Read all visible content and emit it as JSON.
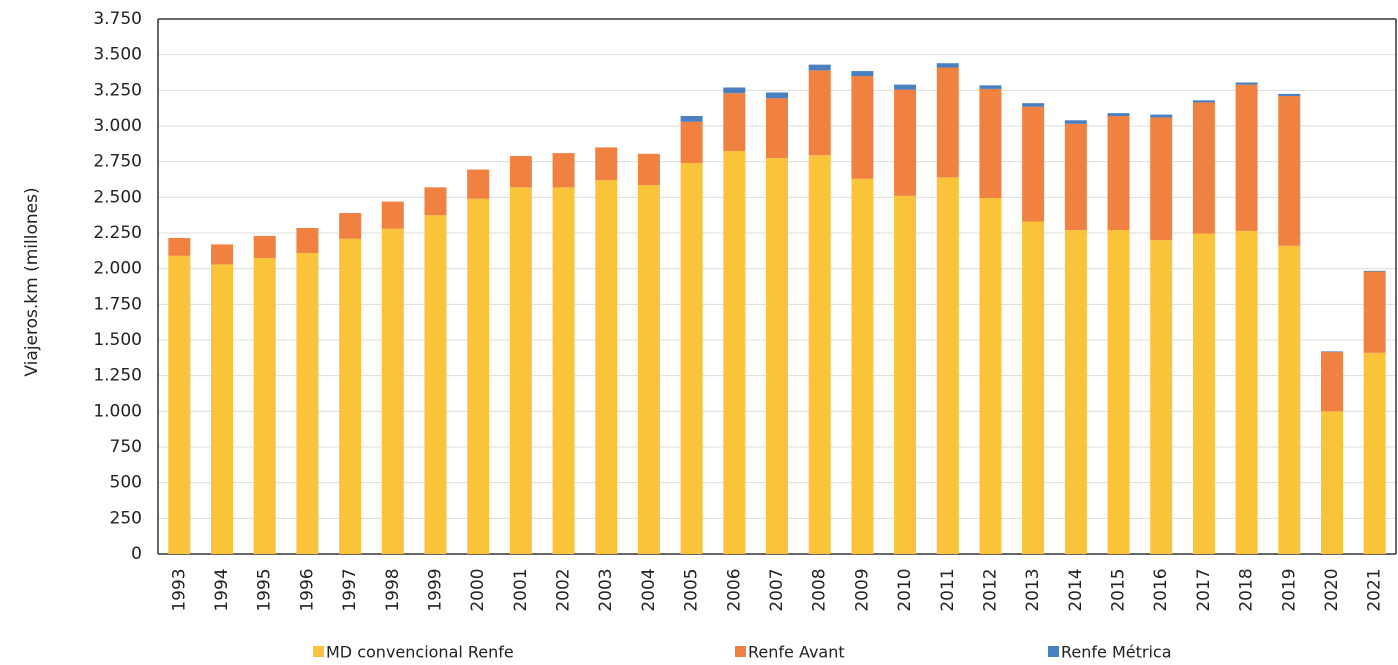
{
  "chart_data": {
    "type": "bar",
    "stacked": true,
    "y_label": "Viajeros.km (millones)",
    "categories": [
      "1993",
      "1994",
      "1995",
      "1996",
      "1997",
      "1998",
      "1999",
      "2000",
      "2001",
      "2002",
      "2003",
      "2004",
      "2005",
      "2006",
      "2007",
      "2008",
      "2009",
      "2010",
      "2011",
      "2012",
      "2013",
      "2014",
      "2015",
      "2016",
      "2017",
      "2018",
      "2019",
      "2020",
      "2021"
    ],
    "series": [
      {
        "name": "MD convencional Renfe",
        "color": "#f9c33a",
        "values": [
          2090,
          2030,
          2075,
          2110,
          2210,
          2280,
          2375,
          2490,
          2570,
          2570,
          2620,
          2585,
          2740,
          2825,
          2775,
          2795,
          2630,
          2510,
          2640,
          2495,
          2330,
          2270,
          2270,
          2200,
          2245,
          2265,
          2160,
          1000,
          1410
        ]
      },
      {
        "name": "Renfe Avant",
        "color": "#f08140",
        "values": [
          125,
          140,
          155,
          175,
          180,
          190,
          195,
          205,
          220,
          240,
          230,
          220,
          290,
          405,
          420,
          595,
          720,
          745,
          770,
          765,
          805,
          745,
          800,
          860,
          920,
          1025,
          1050,
          415,
          570
        ]
      },
      {
        "name": "Renfe Métrica",
        "color": "#4a7fc1",
        "values": [
          0,
          0,
          0,
          0,
          0,
          0,
          0,
          0,
          0,
          0,
          0,
          0,
          40,
          40,
          40,
          40,
          35,
          35,
          30,
          25,
          25,
          25,
          20,
          20,
          15,
          15,
          15,
          5,
          5
        ]
      }
    ],
    "ylim": [
      0,
      3750
    ],
    "yticks": [
      0,
      250,
      500,
      750,
      {
        "value": 1000,
        "label": "1.000"
      },
      {
        "value": 1250,
        "label": "1.250"
      },
      {
        "value": 1500,
        "label": "1.500"
      },
      {
        "value": 1750,
        "label": "1.750"
      },
      {
        "value": 2000,
        "label": "2.000"
      },
      {
        "value": 2250,
        "label": "2.250"
      },
      {
        "value": 2500,
        "label": "2.500"
      },
      {
        "value": 2750,
        "label": "2.750"
      },
      {
        "value": 3000,
        "label": "3.000"
      },
      {
        "value": 3250,
        "label": "3.250"
      },
      {
        "value": 3500,
        "label": "3.500"
      },
      {
        "value": 3750,
        "label": "3.750"
      }
    ],
    "grid": true
  }
}
